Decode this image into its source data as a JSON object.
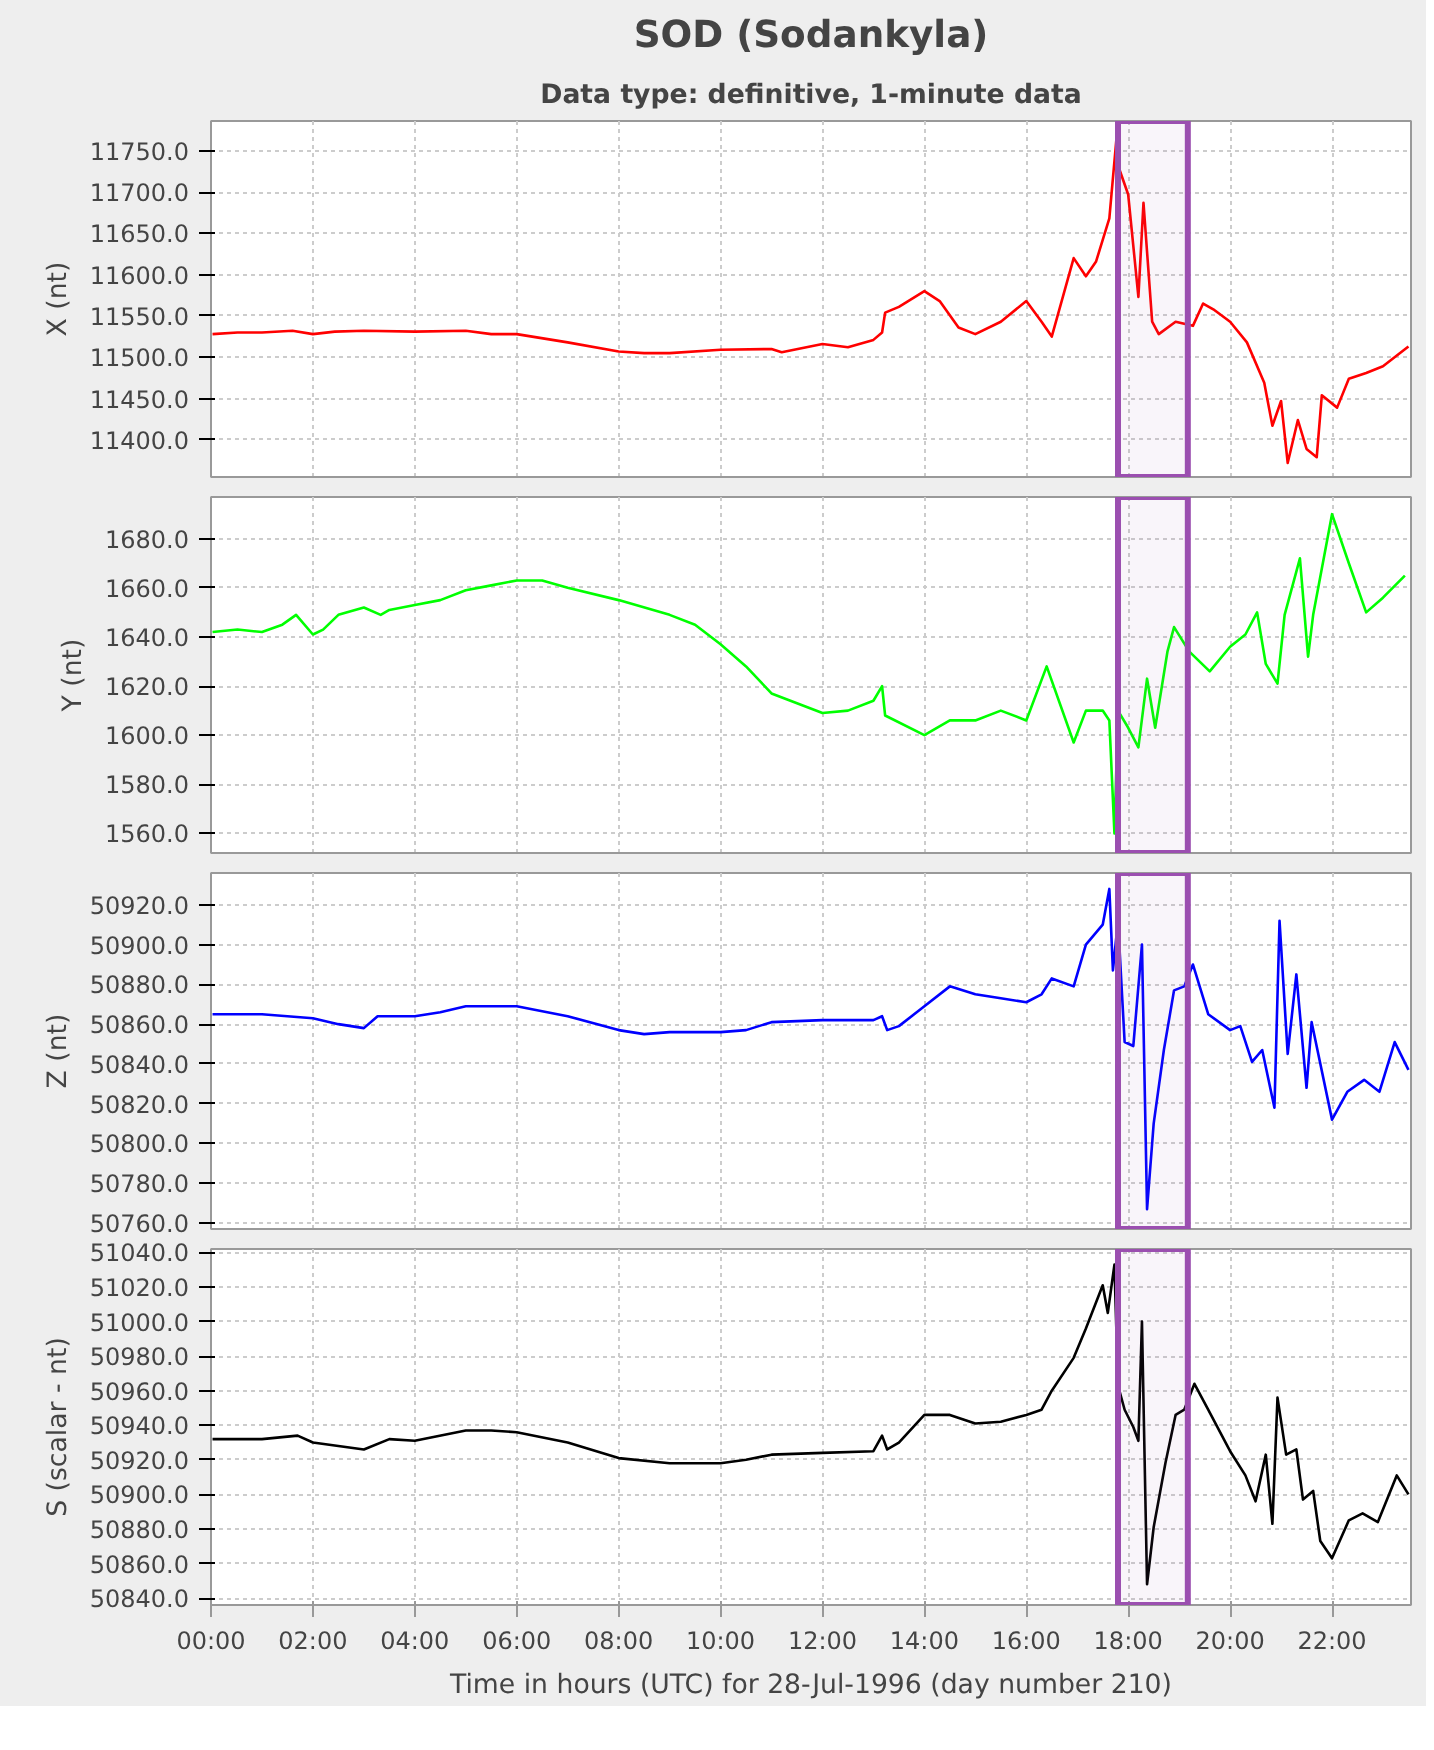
{
  "chart_data": [
    {
      "type": "line",
      "title": "SOD (Sodankyla)",
      "subtitle": "Data type: definitive, 1-minute data",
      "ylabel": "X (nt)",
      "tick_labels": "y",
      "grid": true,
      "xlim": [
        0,
        23.55
      ],
      "xticks": [
        {
          "value": 0,
          "label": null
        },
        {
          "value": 2,
          "label": null
        },
        {
          "value": 4,
          "label": null
        },
        {
          "value": 6,
          "label": null
        },
        {
          "value": 8,
          "label": null
        },
        {
          "value": 10,
          "label": null
        },
        {
          "value": 12,
          "label": null
        },
        {
          "value": 14,
          "label": null
        },
        {
          "value": 16,
          "label": null
        },
        {
          "value": 18,
          "label": null
        },
        {
          "value": 20,
          "label": null
        },
        {
          "value": 22,
          "label": null
        }
      ],
      "ylim": [
        11355,
        11786
      ],
      "yticks": [
        {
          "value": 11400,
          "label": "11400.0"
        },
        {
          "value": 11450,
          "label": "11450.0"
        },
        {
          "value": 11500,
          "label": "11500.0"
        },
        {
          "value": 11550,
          "label": "11550.0"
        },
        {
          "value": 11600,
          "label": "11600.0"
        },
        {
          "value": 11650,
          "label": "11650.0"
        },
        {
          "value": 11700,
          "label": "11700.0"
        },
        {
          "value": 11750,
          "label": "11750.0"
        }
      ],
      "bands": [
        {
          "axis": "x",
          "from": 17.8,
          "to": 19.17,
          "color": "#9b4fb0"
        }
      ],
      "series": [
        {
          "color": "#ff0000",
          "x": [
            0.03,
            0.52,
            1.0,
            1.6,
            2.0,
            2.43,
            3.0,
            4.0,
            5.0,
            5.5,
            6.0,
            7.0,
            8.0,
            8.5,
            9.0,
            10.0,
            11.0,
            11.2,
            12.0,
            12.5,
            13.0,
            13.17,
            13.23,
            13.5,
            14.0,
            14.3,
            14.67,
            15.0,
            15.5,
            16.0,
            16.3,
            16.5,
            16.93,
            17.17,
            17.37,
            17.63,
            17.77,
            17.83,
            18.0,
            18.2,
            18.3,
            18.47,
            18.6,
            18.93,
            19.27,
            19.47,
            19.67,
            20.0,
            20.33,
            20.67,
            20.83,
            21.0,
            21.13,
            21.33,
            21.5,
            21.7,
            21.8,
            22.1,
            22.33,
            22.67,
            23.0,
            23.5
          ],
          "values": [
            11528,
            11530,
            11530,
            11532,
            11528,
            11531,
            11532,
            11531,
            11532,
            11528,
            11528,
            11518,
            11507,
            11505,
            11505,
            11509,
            11510,
            11506,
            11516,
            11512,
            11521,
            11530,
            11554,
            11561,
            11580,
            11568,
            11536,
            11528,
            11543,
            11568,
            11543,
            11525,
            11620,
            11598,
            11616,
            11668,
            11765,
            11727,
            11697,
            11573,
            11687,
            11543,
            11528,
            11543,
            11538,
            11565,
            11558,
            11543,
            11518,
            11469,
            11417,
            11447,
            11372,
            11424,
            11389,
            11379,
            11454,
            11439,
            11474,
            11481,
            11489,
            11513
          ]
        }
      ]
    },
    {
      "type": "line",
      "ylabel": "Y (nt)",
      "tick_labels": "y",
      "grid": true,
      "xlim": [
        0,
        23.55
      ],
      "xticks": [
        {
          "value": 0,
          "label": null
        },
        {
          "value": 2,
          "label": null
        },
        {
          "value": 4,
          "label": null
        },
        {
          "value": 6,
          "label": null
        },
        {
          "value": 8,
          "label": null
        },
        {
          "value": 10,
          "label": null
        },
        {
          "value": 12,
          "label": null
        },
        {
          "value": 14,
          "label": null
        },
        {
          "value": 16,
          "label": null
        },
        {
          "value": 18,
          "label": null
        },
        {
          "value": 20,
          "label": null
        },
        {
          "value": 22,
          "label": null
        }
      ],
      "ylim": [
        1552,
        1697
      ],
      "yticks": [
        {
          "value": 1560,
          "label": "1560.0"
        },
        {
          "value": 1580,
          "label": "1580.0"
        },
        {
          "value": 1600,
          "label": "1600.0"
        },
        {
          "value": 1620,
          "label": "1620.0"
        },
        {
          "value": 1640,
          "label": "1640.0"
        },
        {
          "value": 1660,
          "label": "1660.0"
        },
        {
          "value": 1680,
          "label": "1680.0"
        }
      ],
      "bands": [
        {
          "axis": "x",
          "from": 17.8,
          "to": 19.17,
          "color": "#9b4fb0"
        }
      ],
      "series": [
        {
          "color": "#00ff00",
          "x": [
            0.03,
            0.52,
            1.0,
            1.4,
            1.67,
            2.0,
            2.2,
            2.5,
            3.0,
            3.33,
            3.5,
            4.0,
            4.5,
            5.0,
            5.5,
            6.0,
            6.5,
            7.0,
            8.0,
            9.0,
            9.5,
            10.0,
            10.5,
            11.0,
            11.5,
            12.0,
            12.5,
            13.0,
            13.17,
            13.23,
            14.0,
            14.5,
            15.0,
            15.5,
            16.0,
            16.4,
            16.93,
            17.17,
            17.5,
            17.63,
            17.73,
            17.8,
            18.0,
            18.2,
            18.37,
            18.53,
            18.77,
            18.9,
            19.2,
            19.6,
            20.0,
            20.3,
            20.53,
            20.7,
            20.93,
            21.07,
            21.37,
            21.53,
            21.63,
            22.0,
            22.33,
            22.67,
            23.0,
            23.43
          ],
          "values": [
            1642,
            1643,
            1642,
            1645,
            1649,
            1641,
            1643,
            1649,
            1652,
            1649,
            1651,
            1653,
            1655,
            1659,
            1661,
            1663,
            1663,
            1660,
            1655,
            1649,
            1645,
            1637,
            1628,
            1617,
            1613,
            1609,
            1610,
            1614,
            1620,
            1608,
            1600,
            1606,
            1606,
            1610,
            1606,
            1628,
            1597,
            1610,
            1610,
            1606,
            1560,
            1610,
            1603,
            1595,
            1623,
            1603,
            1634,
            1644,
            1634,
            1626,
            1636,
            1641,
            1650,
            1629,
            1621,
            1649,
            1672,
            1632,
            1649,
            1690,
            1670,
            1650,
            1656,
            1665
          ]
        }
      ]
    },
    {
      "type": "line",
      "ylabel": "Z (nt)",
      "tick_labels": "y",
      "grid": true,
      "xlim": [
        0,
        23.55
      ],
      "xticks": [
        {
          "value": 0,
          "label": null
        },
        {
          "value": 2,
          "label": null
        },
        {
          "value": 4,
          "label": null
        },
        {
          "value": 6,
          "label": null
        },
        {
          "value": 8,
          "label": null
        },
        {
          "value": 10,
          "label": null
        },
        {
          "value": 12,
          "label": null
        },
        {
          "value": 14,
          "label": null
        },
        {
          "value": 16,
          "label": null
        },
        {
          "value": 18,
          "label": null
        },
        {
          "value": 20,
          "label": null
        },
        {
          "value": 22,
          "label": null
        }
      ],
      "ylim": [
        50757,
        50936
      ],
      "yticks": [
        {
          "value": 50760,
          "label": "50760.0"
        },
        {
          "value": 50780,
          "label": "50780.0"
        },
        {
          "value": 50800,
          "label": "50800.0"
        },
        {
          "value": 50820,
          "label": "50820.0"
        },
        {
          "value": 50840,
          "label": "50840.0"
        },
        {
          "value": 50860,
          "label": "50860.0"
        },
        {
          "value": 50880,
          "label": "50880.0"
        },
        {
          "value": 50900,
          "label": "50900.0"
        },
        {
          "value": 50920,
          "label": "50920.0"
        }
      ],
      "bands": [
        {
          "axis": "x",
          "from": 17.8,
          "to": 19.17,
          "color": "#9b4fb0"
        }
      ],
      "series": [
        {
          "color": "#0000ff",
          "x": [
            0.03,
            1.0,
            1.5,
            2.0,
            2.5,
            3.0,
            3.27,
            4.0,
            4.5,
            5.0,
            6.0,
            7.0,
            8.0,
            8.5,
            9.0,
            10.0,
            10.5,
            11.0,
            12.0,
            13.0,
            13.17,
            13.27,
            13.5,
            14.0,
            14.5,
            15.0,
            15.5,
            16.0,
            16.3,
            16.5,
            16.93,
            17.17,
            17.5,
            17.63,
            17.7,
            17.8,
            17.93,
            18.1,
            18.27,
            18.37,
            18.5,
            18.7,
            18.9,
            19.1,
            19.27,
            19.57,
            20.0,
            20.2,
            20.43,
            20.63,
            20.87,
            20.97,
            21.13,
            21.3,
            21.5,
            21.6,
            22.0,
            22.3,
            22.63,
            22.93,
            23.23,
            23.5
          ],
          "values": [
            50865,
            50865,
            50864,
            50863,
            50860,
            50858,
            50864,
            50864,
            50866,
            50869,
            50869,
            50864,
            50857,
            50855,
            50856,
            50856,
            50857,
            50861,
            50862,
            50862,
            50864,
            50857,
            50859,
            50869,
            50879,
            50875,
            50873,
            50871,
            50875,
            50883,
            50879,
            50900,
            50910,
            50928,
            50887,
            50912,
            50851,
            50849,
            50900,
            50767,
            50810,
            50847,
            50877,
            50879,
            50890,
            50865,
            50857,
            50859,
            50841,
            50847,
            50818,
            50912,
            50845,
            50885,
            50828,
            50861,
            50812,
            50826,
            50832,
            50826,
            50851,
            50837
          ]
        }
      ]
    },
    {
      "type": "line",
      "ylabel": "S (scalar - nt)",
      "xlabel": "Time in hours (UTC) for 28-Jul-1996 (day number 210)",
      "grid": true,
      "xlim": [
        0,
        23.55
      ],
      "xticks": [
        {
          "value": 0,
          "label": "00:00"
        },
        {
          "value": 2,
          "label": "02:00"
        },
        {
          "value": 4,
          "label": "04:00"
        },
        {
          "value": 6,
          "label": "06:00"
        },
        {
          "value": 8,
          "label": "08:00"
        },
        {
          "value": 10,
          "label": "10:00"
        },
        {
          "value": 12,
          "label": "12:00"
        },
        {
          "value": 14,
          "label": "14:00"
        },
        {
          "value": 16,
          "label": "16:00"
        },
        {
          "value": 18,
          "label": "18:00"
        },
        {
          "value": 20,
          "label": "20:00"
        },
        {
          "value": 22,
          "label": "22:00"
        }
      ],
      "ylim": [
        50836,
        51042
      ],
      "yticks": [
        {
          "value": 50840,
          "label": "50840.0"
        },
        {
          "value": 50860,
          "label": "50860.0"
        },
        {
          "value": 50880,
          "label": "50880.0"
        },
        {
          "value": 50900,
          "label": "50900.0"
        },
        {
          "value": 50920,
          "label": "50920.0"
        },
        {
          "value": 50940,
          "label": "50940.0"
        },
        {
          "value": 50960,
          "label": "50960.0"
        },
        {
          "value": 50980,
          "label": "50980.0"
        },
        {
          "value": 51000,
          "label": "51000.0"
        },
        {
          "value": 51020,
          "label": "51020.0"
        },
        {
          "value": 51040,
          "label": "51040.0"
        }
      ],
      "bands": [
        {
          "axis": "x",
          "from": 17.8,
          "to": 19.17,
          "color": "#9b4fb0"
        }
      ],
      "series": [
        {
          "color": "#000000",
          "x": [
            0.03,
            1.0,
            1.7,
            2.0,
            3.0,
            3.5,
            4.0,
            5.0,
            5.5,
            6.0,
            7.0,
            8.0,
            9.0,
            10.0,
            10.5,
            11.0,
            12.0,
            13.0,
            13.17,
            13.27,
            13.5,
            14.0,
            14.5,
            15.0,
            15.5,
            16.0,
            16.3,
            16.5,
            16.93,
            17.17,
            17.5,
            17.6,
            17.73,
            17.8,
            17.93,
            18.1,
            18.2,
            18.27,
            18.37,
            18.5,
            18.73,
            18.93,
            19.1,
            19.3,
            19.57,
            20.0,
            20.3,
            20.5,
            20.7,
            20.83,
            20.93,
            21.1,
            21.3,
            21.43,
            21.63,
            21.77,
            22.0,
            22.33,
            22.6,
            22.9,
            23.27,
            23.5
          ],
          "values": [
            50932,
            50932,
            50934,
            50930,
            50926,
            50932,
            50931,
            50937,
            50937,
            50936,
            50930,
            50921,
            50918,
            50918,
            50920,
            50923,
            50924,
            50925,
            50934,
            50926,
            50930,
            50946,
            50946,
            50941,
            50942,
            50946,
            50949,
            50960,
            50979,
            50996,
            51021,
            51005,
            51033,
            50963,
            50949,
            50939,
            50931,
            51000,
            50848,
            50881,
            50918,
            50946,
            50949,
            50964,
            50949,
            50925,
            50911,
            50896,
            50923,
            50883,
            50956,
            50923,
            50926,
            50897,
            50902,
            50873,
            50863,
            50885,
            50889,
            50884,
            50911,
            50900
          ]
        }
      ]
    }
  ]
}
